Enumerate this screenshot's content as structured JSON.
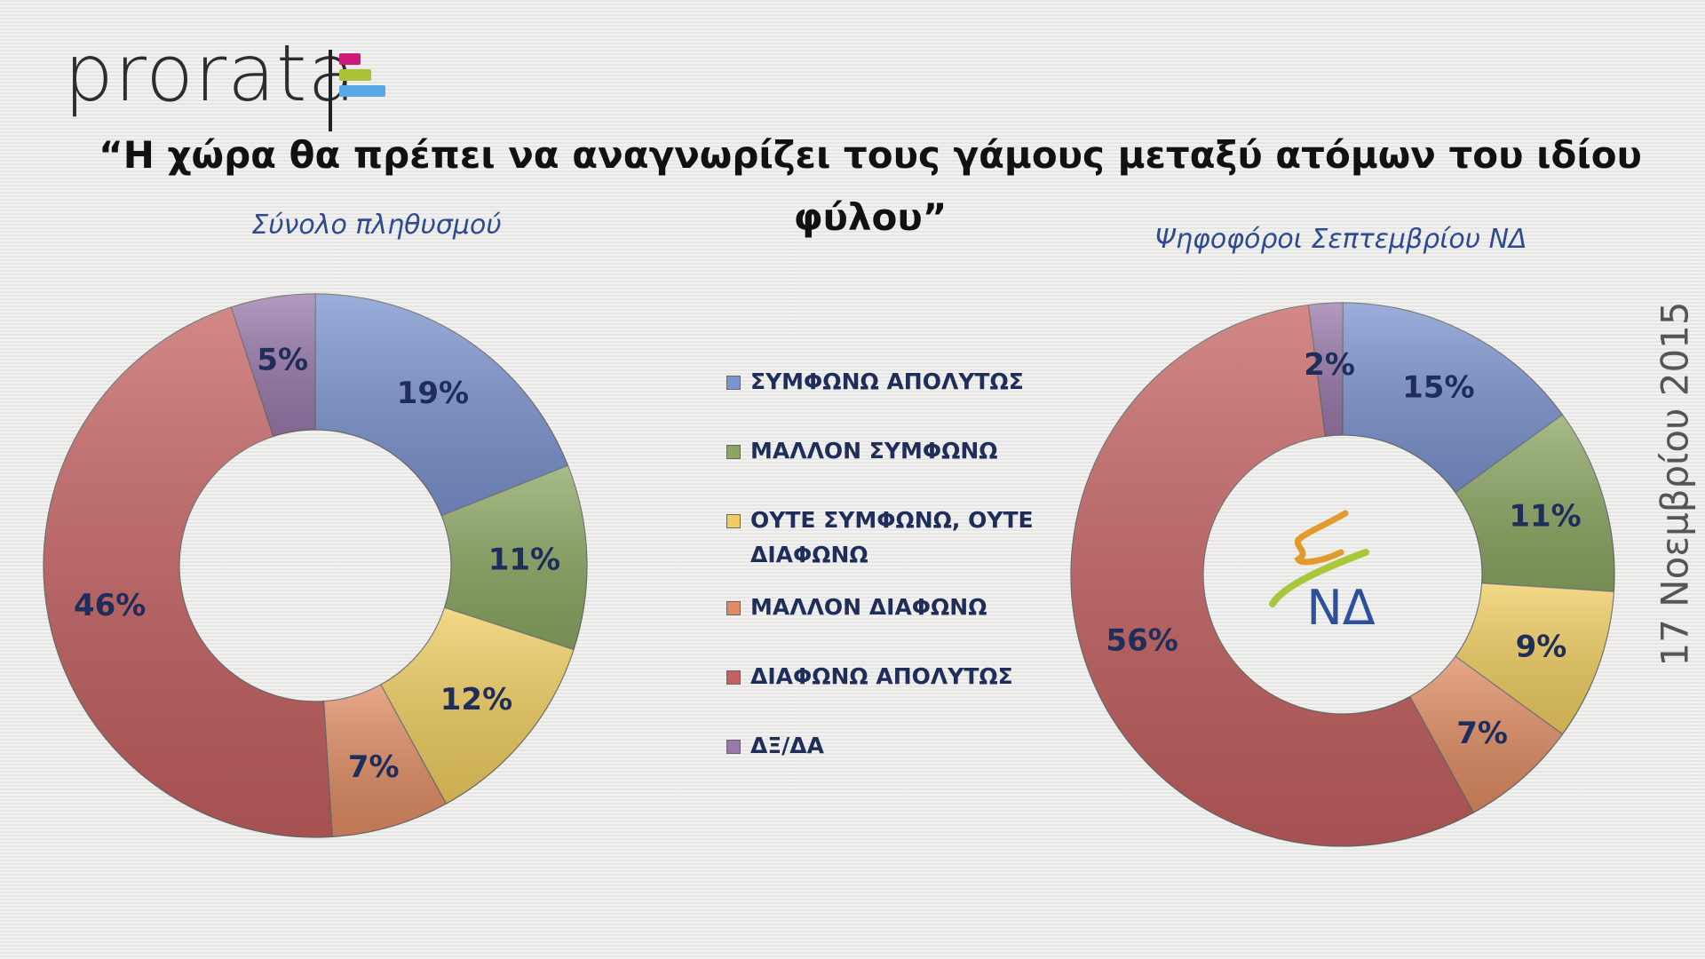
{
  "logo": {
    "text": "prorata",
    "bar_colors": [
      "#d0187a",
      "#a9c23a",
      "#5aa9e6"
    ]
  },
  "title": "“Η χώρα θα πρέπει να αναγνωρίζει τους γάμους μεταξύ ατόμων του ιδίου φύλου”",
  "date": "17 Νοεμβρίου 2015",
  "nd_logo_text": "ΝΔ",
  "chart_data": [
    {
      "type": "pie",
      "subtype": "donut",
      "title": "Σύνολο πληθυσμού",
      "categories": [
        "ΣΥΜΦΩΝΩ ΑΠΟΛΥΤΩΣ",
        "ΜΑΛΛΟΝ ΣΥΜΦΩΝΩ",
        "ΟΥΤΕ ΣΥΜΦΩΝΩ, ΟΥΤΕ ΔΙΑΦΩΝΩ",
        "ΜΑΛΛΟΝ ΔΙΑΦΩΝΩ",
        "ΔΙΑΦΩΝΩ ΑΠΟΛΥΤΩΣ",
        "ΔΞ/ΔΑ"
      ],
      "values": [
        19,
        11,
        12,
        7,
        46,
        5
      ],
      "labels": [
        "19%",
        "11%",
        "12%",
        "7%",
        "46%",
        "5%"
      ]
    },
    {
      "type": "pie",
      "subtype": "donut",
      "title": "Ψηφοφόροι Σεπτεμβρίου ΝΔ",
      "categories": [
        "ΣΥΜΦΩΝΩ ΑΠΟΛΥΤΩΣ",
        "ΜΑΛΛΟΝ ΣΥΜΦΩΝΩ",
        "ΟΥΤΕ ΣΥΜΦΩΝΩ, ΟΥΤΕ ΔΙΑΦΩΝΩ",
        "ΜΑΛΛΟΝ ΔΙΑΦΩΝΩ",
        "ΔΙΑΦΩΝΩ ΑΠΟΛΥΤΩΣ",
        "ΔΞ/ΔΑ"
      ],
      "values": [
        15,
        11,
        9,
        7,
        56,
        2
      ],
      "labels": [
        "15%",
        "11%",
        "9%",
        "7%",
        "56%",
        "2%"
      ]
    }
  ],
  "legend": {
    "placement": "center",
    "items": [
      {
        "label": "ΣΥΜΦΩΝΩ ΑΠΟΛΥΤΩΣ",
        "color": "#7b93cf"
      },
      {
        "label": "ΜΑΛΛΟΝ ΣΥΜΦΩΝΩ",
        "color": "#8ba661"
      },
      {
        "label": "ΟΥΤΕ ΣΥΜΦΩΝΩ, ΟΥΤΕ\nΔΙΑΦΩΝΩ",
        "color": "#efcd5f"
      },
      {
        "label": "ΜΑΛΛΟΝ ΔΙΑΦΩΝΩ",
        "color": "#df8c63"
      },
      {
        "label": "ΔΙΑΦΩΝΩ ΑΠΟΛΥΤΩΣ",
        "color": "#c46060"
      },
      {
        "label": "ΔΞ/ΔΑ",
        "color": "#9979ab"
      }
    ]
  }
}
